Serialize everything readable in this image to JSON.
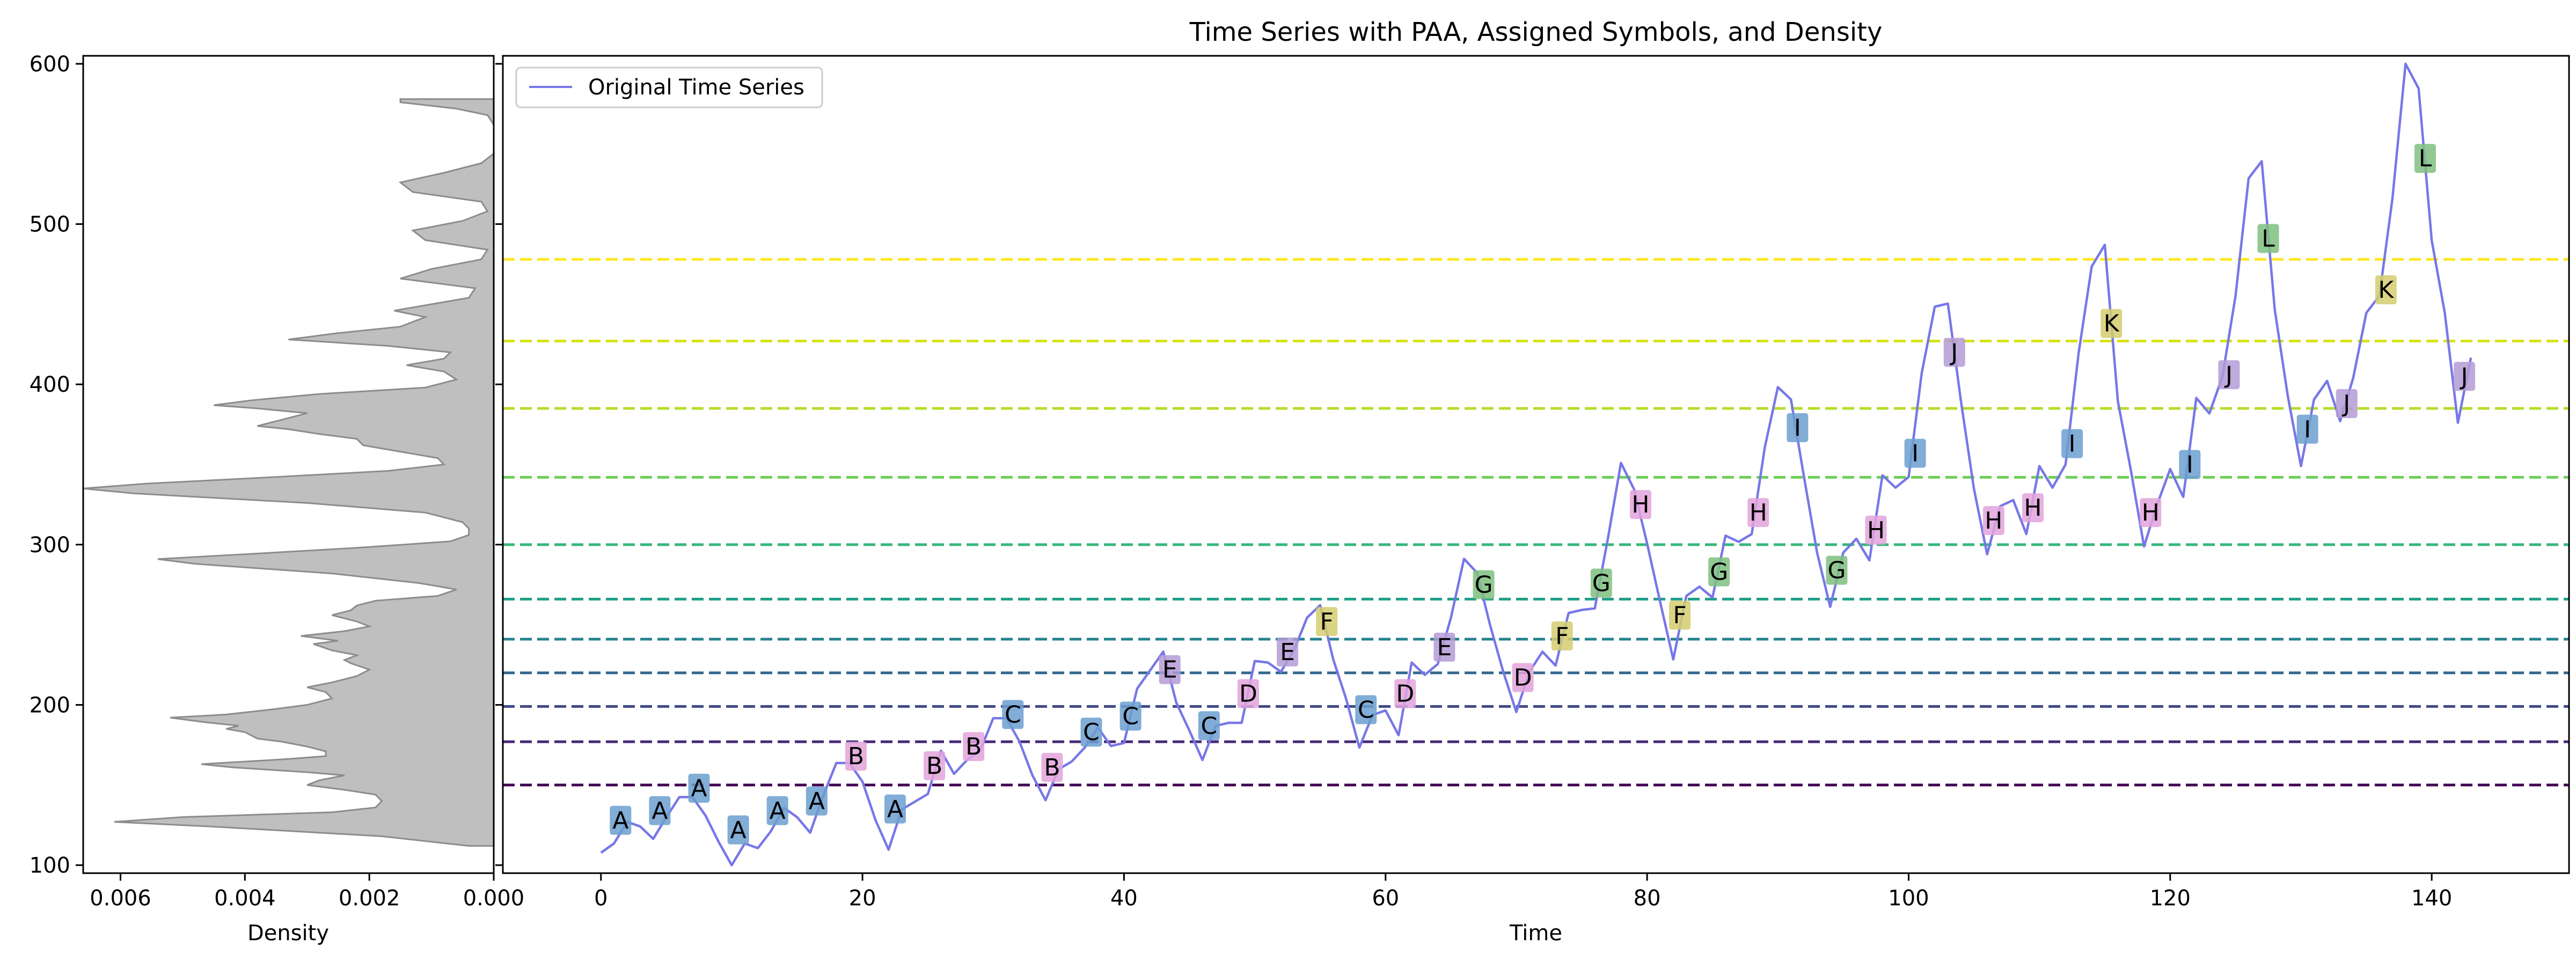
{
  "chart_data": [
    {
      "type": "area",
      "orientation": "horizontal",
      "xlabel": "Density",
      "xlim": [
        0.0066,
        0.0
      ],
      "ylim": [
        95,
        605
      ],
      "x_ticks": [
        "0.006",
        "0.004",
        "0.002",
        "0.000"
      ],
      "x_tick_values": [
        0.006,
        0.004,
        0.002,
        0.0
      ],
      "y_ticks": [
        "100",
        "200",
        "300",
        "400",
        "500",
        "600"
      ],
      "y_tick_values": [
        100,
        200,
        300,
        400,
        500,
        600
      ],
      "fill_color": "#bfbfbf",
      "edge_color": "#8c8c8c",
      "density_points": [
        [
          112,
          0.0004
        ],
        [
          118,
          0.0018
        ],
        [
          124,
          0.0045
        ],
        [
          127,
          0.0061
        ],
        [
          130,
          0.005
        ],
        [
          133,
          0.0026
        ],
        [
          136,
          0.0019
        ],
        [
          140,
          0.0018
        ],
        [
          144,
          0.0019
        ],
        [
          147,
          0.0024
        ],
        [
          150,
          0.003
        ],
        [
          153,
          0.0028
        ],
        [
          156,
          0.0024
        ],
        [
          158,
          0.003
        ],
        [
          161,
          0.0042
        ],
        [
          163,
          0.0047
        ],
        [
          166,
          0.0034
        ],
        [
          168,
          0.0027
        ],
        [
          171,
          0.0027
        ],
        [
          174,
          0.003
        ],
        [
          177,
          0.0034
        ],
        [
          179,
          0.0038
        ],
        [
          181,
          0.0039
        ],
        [
          183,
          0.004
        ],
        [
          185,
          0.0043
        ],
        [
          187,
          0.0041
        ],
        [
          189,
          0.0046
        ],
        [
          192,
          0.0052
        ],
        [
          194,
          0.0043
        ],
        [
          197,
          0.0036
        ],
        [
          200,
          0.003
        ],
        [
          204,
          0.0026
        ],
        [
          208,
          0.0027
        ],
        [
          211,
          0.003
        ],
        [
          214,
          0.0026
        ],
        [
          218,
          0.0022
        ],
        [
          222,
          0.002
        ],
        [
          226,
          0.0023
        ],
        [
          228,
          0.0024
        ],
        [
          231,
          0.0022
        ],
        [
          234,
          0.0026
        ],
        [
          238,
          0.0029
        ],
        [
          240,
          0.0025
        ],
        [
          243,
          0.0031
        ],
        [
          246,
          0.0024
        ],
        [
          249,
          0.002
        ],
        [
          252,
          0.0022
        ],
        [
          256,
          0.0026
        ],
        [
          259,
          0.0023
        ],
        [
          262,
          0.0022
        ],
        [
          265,
          0.0019
        ],
        [
          268,
          0.0009
        ],
        [
          272,
          0.0006
        ],
        [
          276,
          0.0012
        ],
        [
          282,
          0.0026
        ],
        [
          288,
          0.0048
        ],
        [
          291,
          0.0054
        ],
        [
          294,
          0.004
        ],
        [
          298,
          0.0022
        ],
        [
          302,
          0.0007
        ],
        [
          306,
          0.0004
        ],
        [
          310,
          0.0004
        ],
        [
          314,
          0.0005
        ],
        [
          320,
          0.0011
        ],
        [
          326,
          0.003
        ],
        [
          332,
          0.0058
        ],
        [
          335,
          0.0066
        ],
        [
          338,
          0.0056
        ],
        [
          342,
          0.0036
        ],
        [
          346,
          0.0017
        ],
        [
          350,
          0.0008
        ],
        [
          354,
          0.0009
        ],
        [
          358,
          0.0015
        ],
        [
          362,
          0.0021
        ],
        [
          366,
          0.0022
        ],
        [
          369,
          0.0028
        ],
        [
          372,
          0.0033
        ],
        [
          374,
          0.0038
        ],
        [
          378,
          0.0034
        ],
        [
          382,
          0.003
        ],
        [
          385,
          0.0038
        ],
        [
          387,
          0.0045
        ],
        [
          390,
          0.0039
        ],
        [
          394,
          0.0028
        ],
        [
          398,
          0.0011
        ],
        [
          403,
          0.0006
        ],
        [
          408,
          0.0008
        ],
        [
          412,
          0.0014
        ],
        [
          416,
          0.0008
        ],
        [
          420,
          0.0007
        ],
        [
          424,
          0.0017
        ],
        [
          428,
          0.0033
        ],
        [
          432,
          0.0025
        ],
        [
          436,
          0.0015
        ],
        [
          442,
          0.0011
        ],
        [
          446,
          0.0016
        ],
        [
          450,
          0.001
        ],
        [
          454,
          0.0004
        ],
        [
          460,
          0.0003
        ],
        [
          466,
          0.0015
        ],
        [
          472,
          0.001
        ],
        [
          478,
          0.0002
        ],
        [
          484,
          0.0001
        ],
        [
          490,
          0.0011
        ],
        [
          496,
          0.0013
        ],
        [
          502,
          0.0005
        ],
        [
          508,
          0.0001
        ],
        [
          514,
          0.0002
        ],
        [
          520,
          0.0013
        ],
        [
          526,
          0.0015
        ],
        [
          532,
          0.0008
        ],
        [
          538,
          0.0002
        ],
        [
          544,
          0.0
        ],
        [
          550,
          0.0
        ],
        [
          556,
          0.0
        ],
        [
          562,
          0.0
        ],
        [
          568,
          0.0001
        ],
        [
          572,
          0.0006
        ],
        [
          576,
          0.0015
        ],
        [
          578,
          0.0015
        ]
      ]
    },
    {
      "type": "line",
      "title": "Time Series with PAA, Assigned Symbols, and Density",
      "xlabel": "Time",
      "xlim": [
        -7.5,
        150.5
      ],
      "ylim": [
        95,
        605
      ],
      "x_ticks": [
        "0",
        "20",
        "40",
        "60",
        "80",
        "100",
        "120",
        "140"
      ],
      "x_tick_values": [
        0,
        20,
        40,
        60,
        80,
        100,
        120,
        140
      ],
      "y_tick_values": [
        100,
        200,
        300,
        400,
        500,
        600
      ],
      "legend": {
        "label": "Original Time Series",
        "placement": "upper left"
      },
      "series_color": "#7777e8",
      "series": [
        {
          "name": "Original Time Series",
          "values": [
            112,
            118,
            132,
            129,
            121,
            135,
            148,
            148,
            136,
            119,
            104,
            118,
            115,
            126,
            141,
            135,
            125,
            149,
            170,
            170,
            158,
            133,
            114,
            140,
            145,
            150,
            178,
            163,
            172,
            178,
            199,
            199,
            184,
            162,
            146,
            166,
            171,
            180,
            193,
            181,
            183,
            218,
            230,
            242,
            209,
            191,
            172,
            194,
            196,
            196,
            236,
            235,
            229,
            243,
            264,
            272,
            237,
            211,
            180,
            201,
            204,
            188,
            235,
            227,
            234,
            264,
            302,
            293,
            259,
            229,
            203,
            229,
            242,
            233,
            267,
            269,
            270,
            315,
            364,
            347,
            312,
            274,
            237,
            278,
            284,
            277,
            317,
            313,
            318,
            374,
            413,
            405,
            355,
            306,
            271,
            306,
            315,
            301,
            356,
            348,
            355,
            422,
            465,
            467,
            404,
            347,
            305,
            336,
            340,
            318,
            362,
            348,
            363,
            435,
            491,
            505,
            404,
            359,
            310,
            337,
            360,
            342,
            406,
            396,
            420,
            472,
            548,
            559,
            463,
            407,
            362,
            405,
            417,
            391,
            419,
            461,
            472,
            535,
            622,
            606,
            508,
            461,
            390,
            432
          ],
          "display_y_range": [
            100,
            600
          ]
        }
      ],
      "breakpoints": [
        150,
        177,
        199,
        220,
        241,
        266,
        300,
        342,
        385,
        427,
        478
      ],
      "breakpoint_colors": [
        "#440154",
        "#482878",
        "#3e4a89",
        "#31688e",
        "#26828e",
        "#1f9e89",
        "#35b779",
        "#6ece58",
        "#b5de2b",
        "#d8e219",
        "#fde725"
      ],
      "symbol_colors": {
        "A": "#6b9fcf",
        "B": "#e2a3db",
        "C": "#6b9fcf",
        "D": "#e2a3db",
        "E": "#b49bd6",
        "F": "#d3cc6e",
        "G": "#7fbf7f",
        "H": "#e2a3db",
        "I": "#6b9fcf",
        "J": "#b49bd6",
        "K": "#d3cc6e",
        "L": "#7fbf7f"
      },
      "symbols": [
        {
          "t": 1.5,
          "y": 128,
          "label": "A"
        },
        {
          "t": 4.5,
          "y": 134,
          "label": "A"
        },
        {
          "t": 7.5,
          "y": 148,
          "label": "A"
        },
        {
          "t": 10.5,
          "y": 122,
          "label": "A"
        },
        {
          "t": 13.5,
          "y": 134,
          "label": "A"
        },
        {
          "t": 16.5,
          "y": 140,
          "label": "A"
        },
        {
          "t": 19.5,
          "y": 168,
          "label": "B"
        },
        {
          "t": 22.5,
          "y": 135,
          "label": "A"
        },
        {
          "t": 25.5,
          "y": 162,
          "label": "B"
        },
        {
          "t": 28.5,
          "y": 174,
          "label": "B"
        },
        {
          "t": 31.5,
          "y": 194,
          "label": "C"
        },
        {
          "t": 34.5,
          "y": 161,
          "label": "B"
        },
        {
          "t": 37.5,
          "y": 183,
          "label": "C"
        },
        {
          "t": 40.5,
          "y": 193,
          "label": "C"
        },
        {
          "t": 43.5,
          "y": 222,
          "label": "E"
        },
        {
          "t": 46.5,
          "y": 187,
          "label": "C"
        },
        {
          "t": 49.5,
          "y": 207,
          "label": "D"
        },
        {
          "t": 52.5,
          "y": 233,
          "label": "E"
        },
        {
          "t": 55.5,
          "y": 252,
          "label": "F"
        },
        {
          "t": 58.5,
          "y": 197,
          "label": "C"
        },
        {
          "t": 61.5,
          "y": 207,
          "label": "D"
        },
        {
          "t": 64.5,
          "y": 236,
          "label": "E"
        },
        {
          "t": 67.5,
          "y": 275,
          "label": "G"
        },
        {
          "t": 70.5,
          "y": 217,
          "label": "D"
        },
        {
          "t": 73.5,
          "y": 243,
          "label": "F"
        },
        {
          "t": 76.5,
          "y": 276,
          "label": "G"
        },
        {
          "t": 79.5,
          "y": 325,
          "label": "H"
        },
        {
          "t": 82.5,
          "y": 256,
          "label": "F"
        },
        {
          "t": 85.5,
          "y": 283,
          "label": "G"
        },
        {
          "t": 88.5,
          "y": 320,
          "label": "H"
        },
        {
          "t": 91.5,
          "y": 373,
          "label": "I"
        },
        {
          "t": 94.5,
          "y": 284,
          "label": "G"
        },
        {
          "t": 97.5,
          "y": 309,
          "label": "H"
        },
        {
          "t": 100.5,
          "y": 357,
          "label": "I"
        },
        {
          "t": 103.5,
          "y": 420,
          "label": "J"
        },
        {
          "t": 106.5,
          "y": 315,
          "label": "H"
        },
        {
          "t": 109.5,
          "y": 323,
          "label": "H"
        },
        {
          "t": 112.5,
          "y": 363,
          "label": "I"
        },
        {
          "t": 115.5,
          "y": 438,
          "label": "K"
        },
        {
          "t": 118.5,
          "y": 320,
          "label": "H"
        },
        {
          "t": 121.5,
          "y": 350,
          "label": "I"
        },
        {
          "t": 124.5,
          "y": 406,
          "label": "J"
        },
        {
          "t": 127.5,
          "y": 491,
          "label": "L"
        },
        {
          "t": 130.5,
          "y": 372,
          "label": "I"
        },
        {
          "t": 133.5,
          "y": 388,
          "label": "J"
        },
        {
          "t": 136.5,
          "y": 459,
          "label": "K"
        },
        {
          "t": 139.5,
          "y": 541,
          "label": "L"
        },
        {
          "t": 142.5,
          "y": 405,
          "label": "J"
        }
      ]
    }
  ]
}
